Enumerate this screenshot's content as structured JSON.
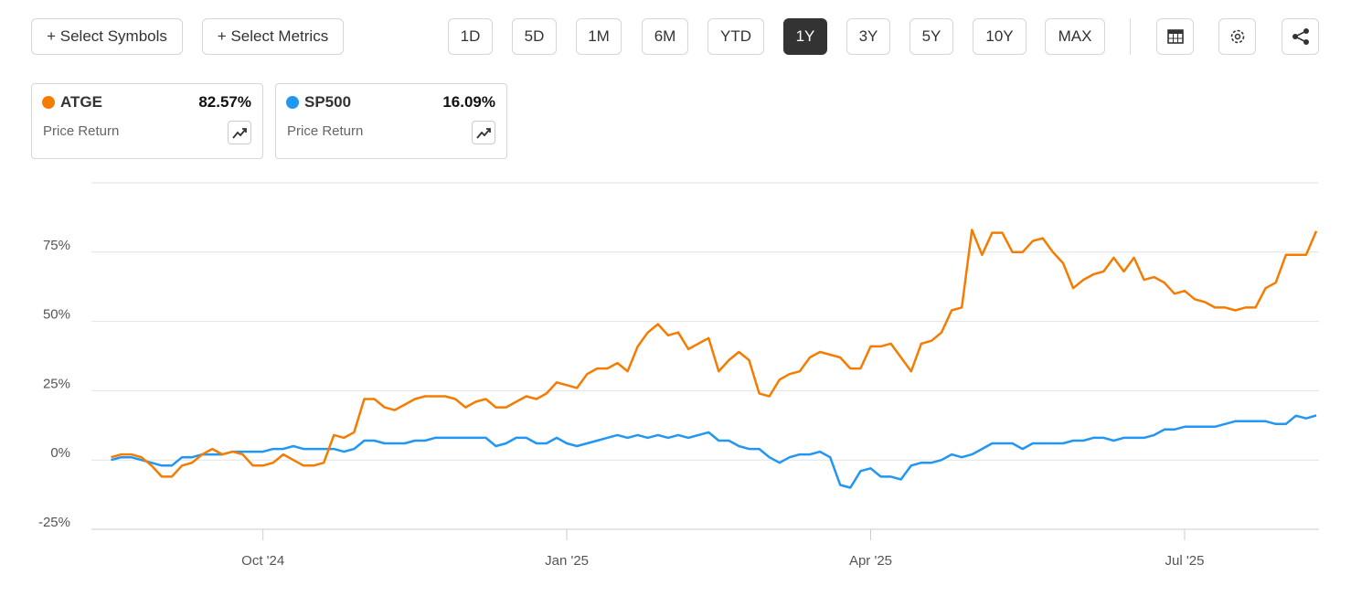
{
  "toolbar": {
    "symbols_button": "+ Select Symbols",
    "metrics_button": "+ Select Metrics",
    "ranges": [
      "1D",
      "5D",
      "1M",
      "6M",
      "YTD",
      "1Y",
      "3Y",
      "5Y",
      "10Y",
      "MAX"
    ],
    "active_range": "1Y"
  },
  "chart_data": {
    "type": "line",
    "categories": [
      null,
      null,
      null,
      null,
      null,
      null,
      null,
      null,
      null,
      null,
      null,
      null,
      null,
      null,
      null,
      "Oct '24",
      null,
      null,
      null,
      null,
      null,
      null,
      null,
      null,
      null,
      null,
      null,
      null,
      null,
      null,
      null,
      null,
      null,
      null,
      null,
      null,
      null,
      null,
      null,
      null,
      null,
      null,
      null,
      null,
      null,
      "Jan '25",
      null,
      null,
      null,
      null,
      null,
      null,
      null,
      null,
      null,
      null,
      null,
      null,
      null,
      null,
      null,
      null,
      null,
      null,
      null,
      null,
      null,
      null,
      null,
      null,
      null,
      null,
      null,
      null,
      null,
      "Apr '25",
      null,
      null,
      null,
      null,
      null,
      null,
      null,
      null,
      null,
      null,
      null,
      null,
      null,
      null,
      null,
      null,
      null,
      null,
      null,
      null,
      null,
      null,
      null,
      null,
      null,
      null,
      null,
      null,
      null,
      null,
      "Jul '25",
      null,
      null,
      null,
      null,
      null,
      null,
      null,
      null,
      null,
      null,
      null,
      null,
      null
    ],
    "series": [
      {
        "name": "ATGE",
        "color": "#f57c00",
        "metric": "Price Return",
        "summary": "82.57%",
        "values": [
          1,
          2,
          2,
          1,
          -2,
          -6,
          -6,
          -2,
          -1,
          2,
          4,
          2,
          3,
          2,
          -2,
          -2,
          -1,
          2,
          0,
          -2,
          -2,
          -1,
          9,
          8,
          10,
          22,
          22,
          19,
          18,
          20,
          22,
          23,
          23,
          23,
          22,
          19,
          21,
          22,
          19,
          19,
          21,
          23,
          22,
          24,
          28,
          27,
          26,
          31,
          33,
          33,
          35,
          32,
          41,
          46,
          49,
          45,
          46,
          40,
          42,
          44,
          32,
          36,
          39,
          36,
          24,
          23,
          29,
          31,
          32,
          37,
          39,
          38,
          37,
          33,
          33,
          41,
          41,
          42,
          37,
          32,
          42,
          43,
          46,
          54,
          55,
          83,
          74,
          82,
          82,
          75,
          75,
          79,
          80,
          75,
          71,
          62,
          65,
          67,
          68,
          73,
          68,
          73,
          65,
          66,
          64,
          60,
          61,
          58,
          57,
          55,
          55,
          54,
          55,
          55,
          62,
          64,
          74,
          74,
          74,
          82.57
        ]
      },
      {
        "name": "SP500",
        "color": "#2196f3",
        "metric": "Price Return",
        "summary": "16.09%",
        "values": [
          0,
          1,
          1,
          0,
          -1,
          -2,
          -2,
          1,
          1,
          2,
          2,
          2,
          3,
          3,
          3,
          3,
          4,
          4,
          5,
          4,
          4,
          4,
          4,
          3,
          4,
          7,
          7,
          6,
          6,
          6,
          7,
          7,
          8,
          8,
          8,
          8,
          8,
          8,
          5,
          6,
          8,
          8,
          6,
          6,
          8,
          6,
          5,
          6,
          7,
          8,
          9,
          8,
          9,
          8,
          9,
          8,
          9,
          8,
          9,
          10,
          7,
          7,
          5,
          4,
          4,
          1,
          -1,
          1,
          2,
          2,
          3,
          1,
          -9,
          -10,
          -4,
          -3,
          -6,
          -6,
          -7,
          -2,
          -1,
          -1,
          0,
          2,
          1,
          2,
          4,
          6,
          6,
          6,
          4,
          6,
          6,
          6,
          6,
          7,
          7,
          8,
          8,
          7,
          8,
          8,
          8,
          9,
          11,
          11,
          12,
          12,
          12,
          12,
          13,
          14,
          14,
          14,
          14,
          13,
          13,
          16,
          15,
          16.09
        ]
      }
    ],
    "ylim": [
      -25,
      100
    ],
    "yticks": [
      {
        "value": -25,
        "label": "-25%"
      },
      {
        "value": 0,
        "label": "0%"
      },
      {
        "value": 25,
        "label": "25%"
      },
      {
        "value": 50,
        "label": "50%"
      },
      {
        "value": 75,
        "label": "75%"
      },
      {
        "value": 100,
        "label": ""
      }
    ],
    "grid": true
  }
}
